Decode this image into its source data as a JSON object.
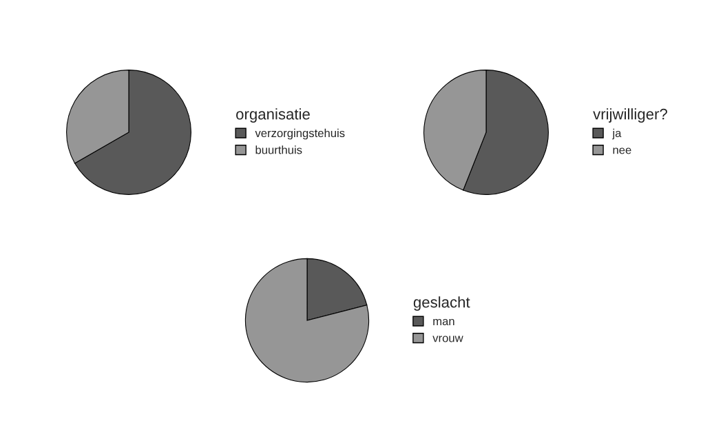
{
  "chart_data": [
    {
      "type": "pie",
      "legend_title": "organisatie",
      "categories": [
        "verzorgingstehuis",
        "buurthuis"
      ],
      "values": [
        66.7,
        33.3
      ],
      "colors": [
        "#595959",
        "#969696"
      ],
      "legend": "right"
    },
    {
      "type": "pie",
      "legend_title": "vrijwilliger?",
      "categories": [
        "ja",
        "nee"
      ],
      "values": [
        56,
        44
      ],
      "colors": [
        "#595959",
        "#969696"
      ],
      "legend": "right"
    },
    {
      "type": "pie",
      "legend_title": "geslacht",
      "categories": [
        "man",
        "vrouw"
      ],
      "values": [
        21,
        79
      ],
      "colors": [
        "#595959",
        "#969696"
      ],
      "legend": "right"
    }
  ]
}
